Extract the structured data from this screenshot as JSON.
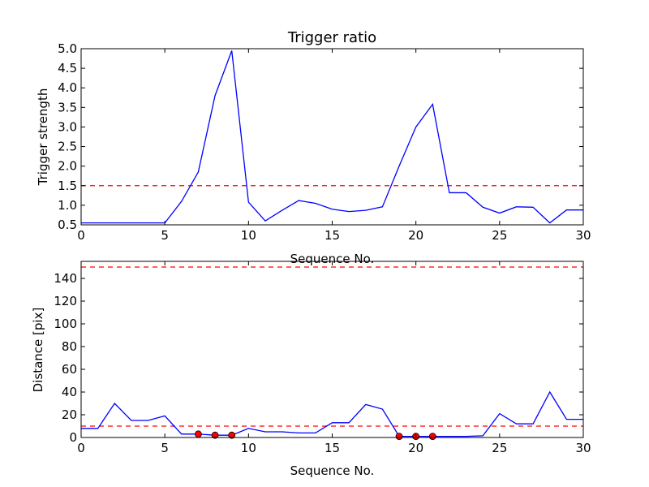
{
  "chart_data": [
    {
      "type": "line",
      "title": "Trigger ratio",
      "xlabel": "Sequence No.",
      "ylabel": "Trigger strength",
      "xlim": [
        0,
        30
      ],
      "ylim": [
        0.5,
        5.0
      ],
      "xticks": [
        "0",
        "5",
        "10",
        "15",
        "20",
        "25",
        "30"
      ],
      "yticks": [
        "0.5",
        "1.0",
        "1.5",
        "2.0",
        "2.5",
        "3.0",
        "3.5",
        "4.0",
        "4.5",
        "5.0"
      ],
      "grid": false,
      "series": [
        {
          "color": "#0000ff",
          "x": [
            0,
            1,
            2,
            3,
            4,
            5,
            6,
            7,
            8,
            9,
            10,
            11,
            12,
            13,
            14,
            15,
            16,
            17,
            18,
            19,
            20,
            21,
            22,
            23,
            24,
            25,
            26,
            27,
            28,
            29,
            30
          ],
          "y": [
            0.55,
            0.55,
            0.55,
            0.55,
            0.55,
            0.55,
            1.1,
            1.85,
            3.8,
            4.95,
            1.08,
            0.6,
            0.87,
            1.12,
            1.05,
            0.9,
            0.84,
            0.87,
            0.96,
            2.0,
            3.0,
            3.58,
            1.32,
            1.32,
            0.95,
            0.8,
            0.96,
            0.95,
            0.55,
            0.88,
            0.88
          ]
        }
      ],
      "threshold": {
        "y": 1.5,
        "color": "#ff0000",
        "style": "dashed"
      }
    },
    {
      "type": "line",
      "title": "",
      "xlabel": "Sequence No.",
      "ylabel": "Distance [pix]",
      "xlim": [
        0,
        30
      ],
      "ylim": [
        0,
        155
      ],
      "xticks": [
        "0",
        "5",
        "10",
        "15",
        "20",
        "25",
        "30"
      ],
      "yticks": [
        "0",
        "20",
        "40",
        "60",
        "80",
        "100",
        "120",
        "140"
      ],
      "grid": false,
      "series": [
        {
          "color": "#0000ff",
          "x": [
            0,
            1,
            2,
            3,
            4,
            5,
            6,
            7,
            8,
            9,
            10,
            11,
            12,
            13,
            14,
            15,
            16,
            17,
            18,
            19,
            20,
            21,
            22,
            23,
            24,
            25,
            26,
            27,
            28,
            29,
            30
          ],
          "y": [
            8,
            8,
            30,
            15,
            15,
            19,
            3,
            3,
            2,
            2,
            8,
            5,
            5,
            4,
            4,
            13,
            13,
            29,
            25,
            1,
            1,
            1,
            1,
            1,
            1.5,
            21,
            12,
            12,
            40,
            16,
            16
          ]
        }
      ],
      "markers": {
        "color": "#ff0000",
        "x": [
          7,
          8,
          9,
          19,
          20,
          21
        ],
        "y": [
          3,
          2,
          2,
          1,
          1,
          1
        ]
      },
      "thresholds": [
        {
          "y": 150,
          "color": "#ff0000",
          "style": "dashed"
        },
        {
          "y": 10,
          "color": "#ff0000",
          "style": "dashed"
        }
      ]
    }
  ]
}
